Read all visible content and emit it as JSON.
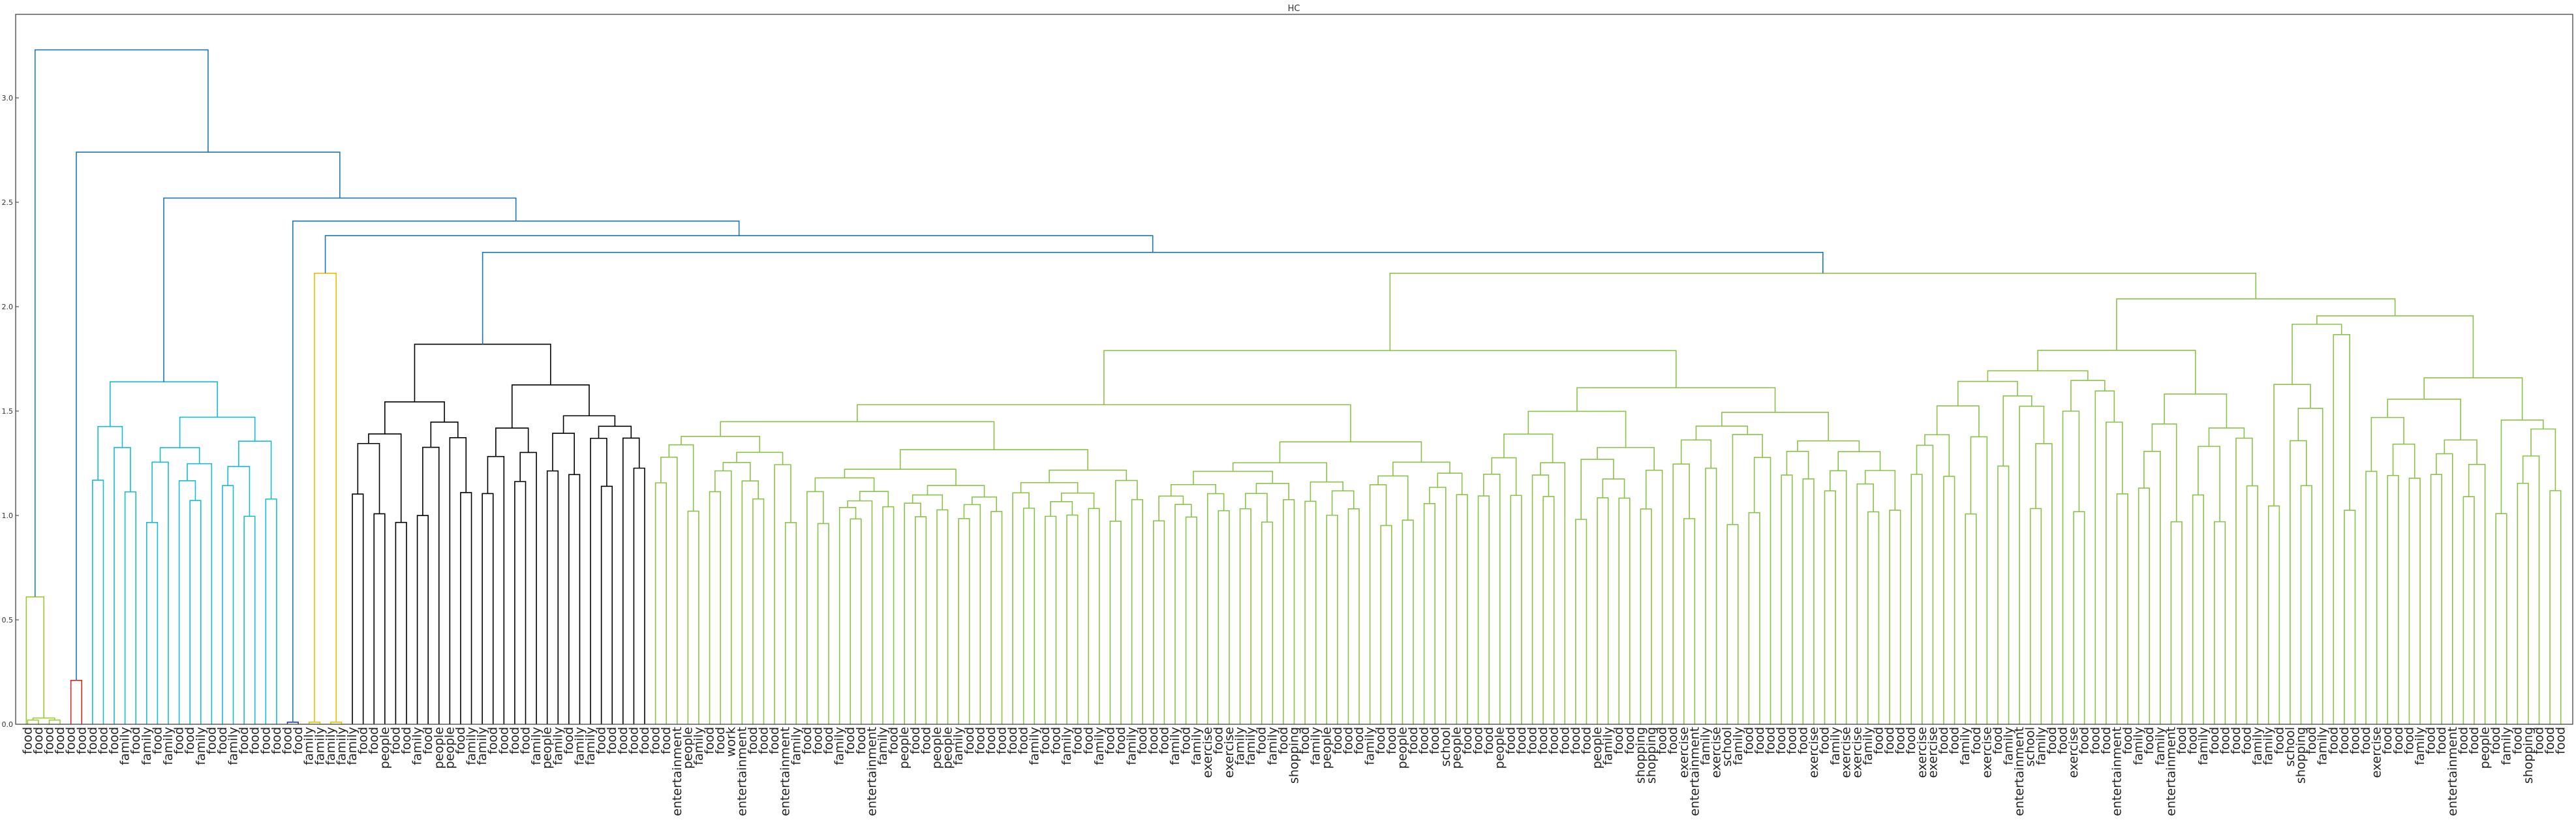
{
  "chart_data": {
    "type": "dendrogram",
    "title": "HC",
    "xlabel": "",
    "ylabel": "",
    "ylim": [
      0,
      3.4
    ],
    "yticks": [
      "0.0",
      "0.5",
      "1.0",
      "1.5",
      "2.0",
      "2.5",
      "3.0"
    ],
    "grid": false,
    "top_merges": [
      {
        "height": 3.23,
        "description": "root merge: small 'food' leaf group with the rest"
      },
      {
        "height": 2.74
      },
      {
        "height": 2.52
      },
      {
        "height": 2.41
      },
      {
        "height": 2.34
      },
      {
        "height": 2.26
      },
      {
        "height": 2.16,
        "description": "yellow cluster merge"
      },
      {
        "height": 1.82,
        "description": "black cluster root"
      },
      {
        "height": 1.64,
        "description": "cyan cluster root"
      },
      {
        "height": 0.61,
        "description": "olive 'food' pair"
      },
      {
        "height": 0.21,
        "description": "red 'food' pair"
      }
    ],
    "clusters": [
      {
        "name": "",
        "color": "#9acd32",
        "leaves": [
          "food",
          "food",
          "food",
          "food"
        ]
      },
      {
        "name": "",
        "color": "#d62728",
        "leaves": [
          "food",
          "food"
        ]
      },
      {
        "name": "",
        "color": "#17becf",
        "leaves": [
          "food",
          "food",
          "food",
          "family",
          "food",
          "family",
          "food",
          "family",
          "food",
          "food",
          "family",
          "food",
          "food",
          "family",
          "food",
          "food",
          "food",
          "food"
        ]
      },
      {
        "name": "",
        "color": "#1f3fa0",
        "leaves": [
          "food",
          "food"
        ]
      },
      {
        "name": "",
        "color": "#e6c200",
        "leaves": [
          "family",
          "family",
          "family",
          "family"
        ]
      },
      {
        "name": "",
        "color": "#000000",
        "leaves": [
          "family",
          "food",
          "food",
          "people",
          "food",
          "food",
          "family",
          "food",
          "people",
          "people",
          "food",
          "family",
          "family",
          "food",
          "food",
          "food",
          "food",
          "family",
          "people",
          "family",
          "food",
          "family",
          "family",
          "food",
          "food",
          "food",
          "food",
          "food"
        ]
      },
      {
        "name": "",
        "color": "#8bc34a",
        "leaves": [
          "food",
          "food",
          "entertainment",
          "people",
          "family",
          "food",
          "food",
          "work",
          "entertainment",
          "food",
          "food",
          "food",
          "entertainment",
          "family",
          "food",
          "food",
          "food",
          "family",
          "food",
          "food",
          "entertainment",
          "family",
          "food",
          "people",
          "food",
          "food",
          "people",
          "people",
          "family",
          "food",
          "food",
          "food",
          "food",
          "food",
          "food",
          "family",
          "food",
          "food",
          "family",
          "food",
          "food",
          "family",
          "food",
          "food",
          "family",
          "food",
          "food",
          "food",
          "family",
          "food",
          "family",
          "exercise",
          "food",
          "exercise",
          "family",
          "family",
          "food",
          "family",
          "food",
          "shopping",
          "food",
          "family",
          "people",
          "food",
          "food",
          "food",
          "family",
          "food",
          "food",
          "people",
          "food",
          "food",
          "food",
          "school",
          "people",
          "food",
          "food",
          "food",
          "people",
          "food",
          "food",
          "food",
          "food",
          "food",
          "food",
          "food",
          "food",
          "people",
          "family",
          "food",
          "food",
          "shopping",
          "shopping",
          "food",
          "food",
          "exercise",
          "entertainment",
          "family",
          "exercise",
          "school",
          "family",
          "food",
          "food",
          "food",
          "food",
          "food",
          "food",
          "exercise",
          "food",
          "family",
          "exercise",
          "exercise",
          "family",
          "food",
          "food",
          "food",
          "food",
          "exercise",
          "exercise",
          "food",
          "food",
          "family",
          "food",
          "exercise",
          "food",
          "family",
          "entertainment",
          "school",
          "family",
          "food",
          "food",
          "exercise",
          "food",
          "food",
          "food",
          "entertainment",
          "food",
          "family",
          "food",
          "family",
          "entertainment",
          "food",
          "food",
          "family",
          "food",
          "food",
          "food",
          "food",
          "family",
          "family",
          "food",
          "school",
          "shopping",
          "food",
          "family",
          "food",
          "food",
          "food",
          "food",
          "exercise",
          "food",
          "food",
          "food",
          "family",
          "food",
          "food",
          "entertainment",
          "food",
          "food",
          "people",
          "food",
          "family",
          "food",
          "shopping",
          "food",
          "food",
          "food"
        ]
      }
    ]
  }
}
